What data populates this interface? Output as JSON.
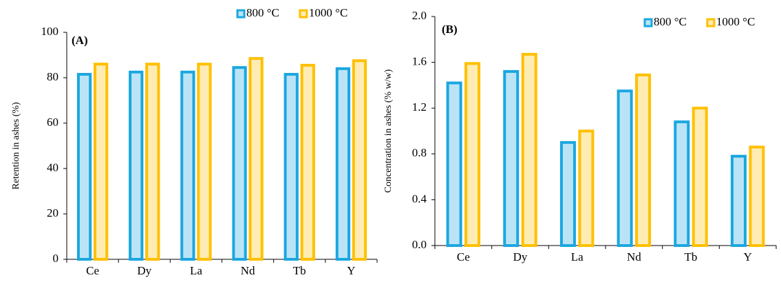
{
  "chart_data": [
    {
      "type": "bar",
      "annotation": "(A)",
      "y_label": "Retention in ashes (%)",
      "categories": [
        "Ce",
        "Dy",
        "La",
        "Nd",
        "Tb",
        "Y"
      ],
      "series": [
        {
          "name": "800 °C",
          "color": "#1aa7e0",
          "values": [
            81.5,
            82.5,
            82.5,
            84.5,
            81.5,
            84
          ]
        },
        {
          "name": "1000 °C",
          "color": "#ffc000",
          "values": [
            86,
            86,
            86,
            88.5,
            85.5,
            87.5
          ]
        }
      ],
      "ylim": [
        0,
        100
      ],
      "yticks": [
        0,
        20,
        40,
        60,
        80,
        100
      ]
    },
    {
      "type": "bar",
      "annotation": "(B)",
      "y_label": "Concentration in ashes (% w/w)",
      "categories": [
        "Ce",
        "Dy",
        "La",
        "Nd",
        "Tb",
        "Y"
      ],
      "series": [
        {
          "name": "800 °C",
          "color": "#1aa7e0",
          "values": [
            1.42,
            1.52,
            0.9,
            1.35,
            1.08,
            0.78
          ]
        },
        {
          "name": "1000 °C",
          "color": "#ffc000",
          "values": [
            1.59,
            1.67,
            1.0,
            1.49,
            1.2,
            0.86
          ]
        }
      ],
      "ylim": [
        0,
        2
      ],
      "yticks": [
        {
          "value": 0,
          "label": "0.0"
        },
        0.4,
        0.8,
        1.2,
        1.6,
        {
          "value": 2,
          "label": "2.0"
        }
      ]
    }
  ]
}
